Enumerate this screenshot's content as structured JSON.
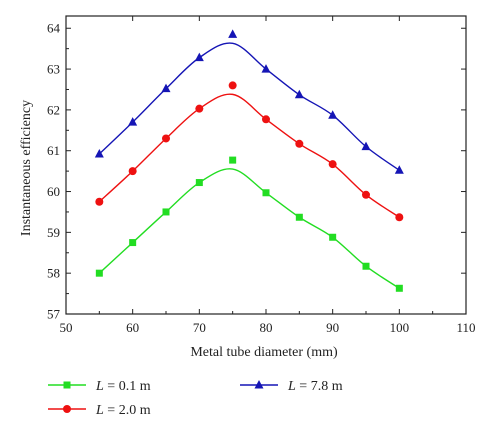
{
  "chart_data": {
    "type": "line",
    "xlabel": "Metal tube diameter (mm)",
    "ylabel": "Instantaneous efficiency",
    "xlim": [
      50,
      110
    ],
    "ylim": [
      57,
      64.3
    ],
    "x_ticks": [
      "50",
      "60",
      "70",
      "80",
      "90",
      "100",
      "110"
    ],
    "y_ticks": [
      "57",
      "58",
      "59",
      "60",
      "61",
      "62",
      "63",
      "64"
    ],
    "grid": false,
    "legend_position": "bottom",
    "x": [
      55,
      60,
      65,
      70,
      75,
      80,
      85,
      90,
      95,
      100
    ],
    "series": [
      {
        "name_var": "L",
        "name_rest": " = 0.1 m",
        "color": "#22dd22",
        "marker": "square",
        "values": [
          58.0,
          58.75,
          59.5,
          60.22,
          60.77,
          59.97,
          59.37,
          58.88,
          58.17,
          57.63
        ]
      },
      {
        "name_var": "L",
        "name_rest": " = 2.0 m",
        "color": "#ee1111",
        "marker": "circle",
        "values": [
          59.75,
          60.5,
          61.3,
          62.03,
          62.6,
          61.77,
          61.17,
          60.67,
          59.92,
          59.37
        ]
      },
      {
        "name_var": "L",
        "name_rest": " = 7.8 m",
        "color": "#1515b5",
        "marker": "triangle",
        "values": [
          60.92,
          61.7,
          62.52,
          63.28,
          63.85,
          63.0,
          62.37,
          61.87,
          61.1,
          60.52
        ]
      }
    ]
  }
}
